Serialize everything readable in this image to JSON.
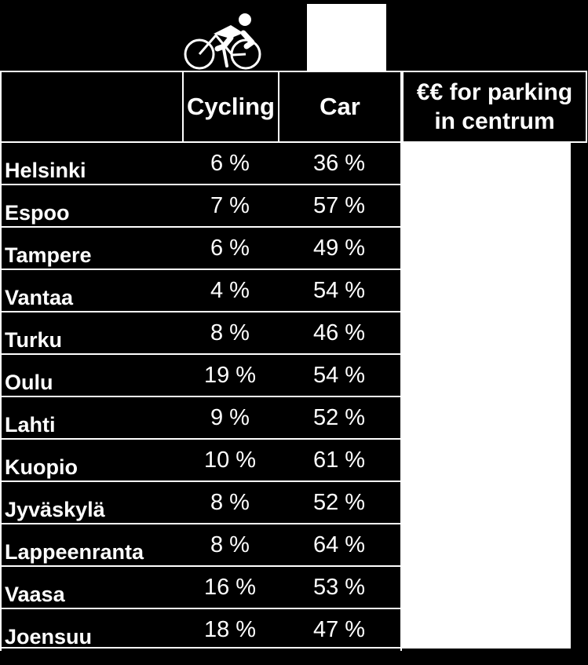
{
  "headers": {
    "cycling": "Cycling",
    "car": "Car",
    "parking": "€€ for parking in centrum"
  },
  "icons": {
    "cycling": "cyclist-icon",
    "car": "car-icon"
  },
  "rows": [
    {
      "city": "Helsinki",
      "cycling": "6 %",
      "car": "36 %"
    },
    {
      "city": "Espoo",
      "cycling": "7 %",
      "car": "57 %"
    },
    {
      "city": "Tampere",
      "cycling": "6 %",
      "car": "49 %"
    },
    {
      "city": "Vantaa",
      "cycling": "4 %",
      "car": "54 %"
    },
    {
      "city": "Turku",
      "cycling": "8 %",
      "car": "46 %"
    },
    {
      "city": "Oulu",
      "cycling": "19 %",
      "car": "54 %"
    },
    {
      "city": "Lahti",
      "cycling": "9 %",
      "car": "52 %"
    },
    {
      "city": "Kuopio",
      "cycling": "10 %",
      "car": "61 %"
    },
    {
      "city": "Jyväskylä",
      "cycling": "8 %",
      "car": "52 %"
    },
    {
      "city": "Lappeenranta",
      "cycling": "8 %",
      "car": "64 %"
    },
    {
      "city": "Vaasa",
      "cycling": "16 %",
      "car": "53 %"
    },
    {
      "city": "Joensuu",
      "cycling": "18 %",
      "car": "47 %"
    }
  ],
  "colors": {
    "background": "#000000",
    "foreground": "#ffffff"
  }
}
